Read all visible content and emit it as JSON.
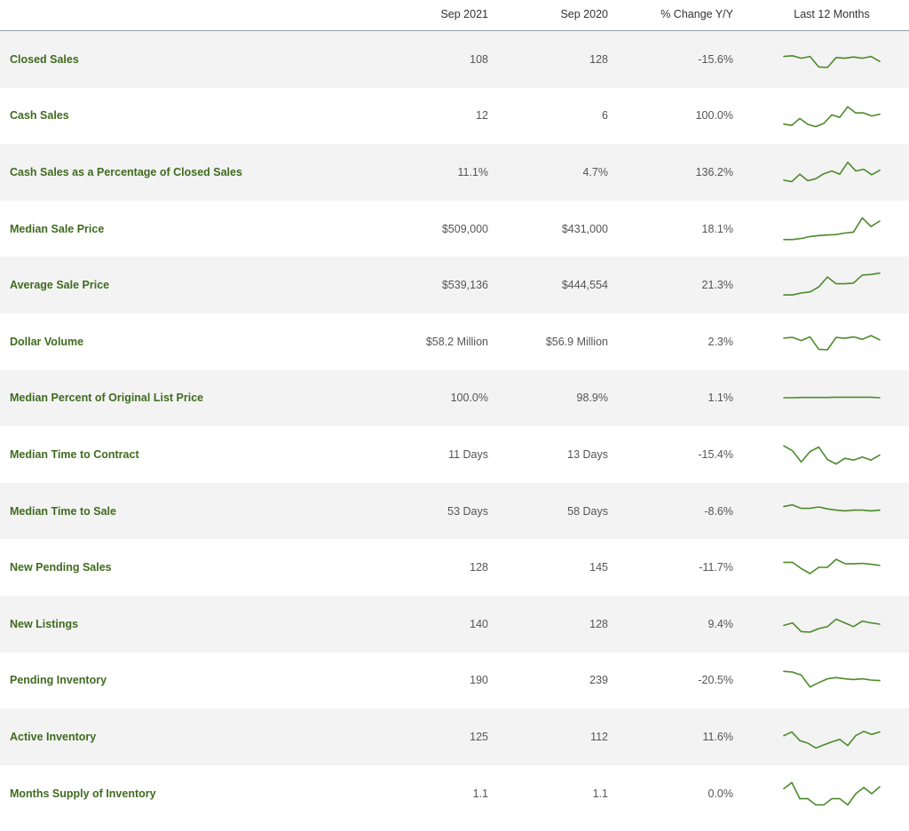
{
  "header": {
    "col1": "Sep 2021",
    "col2": "Sep 2020",
    "col3": "% Change Y/Y",
    "col4": "Last 12 Months"
  },
  "rows": [
    {
      "label": "Closed Sales",
      "sep2021": "108",
      "sep2020": "128",
      "change": "-15.6%",
      "trend": [
        0.62,
        0.65,
        0.55,
        0.62,
        0.2,
        0.18,
        0.58,
        0.55,
        0.6,
        0.55,
        0.62,
        0.42
      ]
    },
    {
      "label": "Cash Sales",
      "sep2021": "12",
      "sep2020": "6",
      "change": "100.0%",
      "trend": [
        0.15,
        0.1,
        0.38,
        0.14,
        0.05,
        0.18,
        0.52,
        0.42,
        0.85,
        0.6,
        0.6,
        0.48,
        0.55
      ]
    },
    {
      "label": "Cash Sales as a Percentage of Closed Sales",
      "sep2021": "11.1%",
      "sep2020": "4.7%",
      "change": "136.2%",
      "trend": [
        0.18,
        0.12,
        0.42,
        0.16,
        0.24,
        0.44,
        0.55,
        0.42,
        0.9,
        0.55,
        0.62,
        0.4,
        0.58
      ]
    },
    {
      "label": "Median Sale Price",
      "sep2021": "$509,000",
      "sep2020": "$431,000",
      "change": "18.1%",
      "trend": [
        0.08,
        0.08,
        0.12,
        0.2,
        0.24,
        0.26,
        0.28,
        0.34,
        0.38,
        0.95,
        0.6,
        0.82
      ]
    },
    {
      "label": "Average Sale Price",
      "sep2021": "$539,136",
      "sep2020": "$444,554",
      "change": "21.3%",
      "trend": [
        0.1,
        0.1,
        0.18,
        0.22,
        0.42,
        0.82,
        0.55,
        0.55,
        0.58,
        0.9,
        0.92,
        0.98
      ]
    },
    {
      "label": "Dollar Volume",
      "sep2021": "$58.2 Million",
      "sep2020": "$56.9 Million",
      "change": "2.3%",
      "trend": [
        0.65,
        0.68,
        0.55,
        0.7,
        0.2,
        0.18,
        0.68,
        0.64,
        0.7,
        0.6,
        0.75,
        0.58
      ]
    },
    {
      "label": "Median Percent of Original List Price",
      "sep2021": "100.0%",
      "sep2020": "98.9%",
      "change": "1.1%",
      "trend": [
        0.5,
        0.5,
        0.51,
        0.51,
        0.51,
        0.51,
        0.52,
        0.52,
        0.52,
        0.52,
        0.52,
        0.5
      ]
    },
    {
      "label": "Median Time to Contract",
      "sep2021": "11 Days",
      "sep2020": "13 Days",
      "change": "-15.4%",
      "trend": [
        0.85,
        0.65,
        0.2,
        0.62,
        0.8,
        0.3,
        0.12,
        0.35,
        0.28,
        0.4,
        0.28,
        0.48
      ]
    },
    {
      "label": "Median Time to Sale",
      "sep2021": "53 Days",
      "sep2020": "58 Days",
      "change": "-8.6%",
      "trend": [
        0.7,
        0.76,
        0.62,
        0.62,
        0.68,
        0.6,
        0.55,
        0.52,
        0.55,
        0.55,
        0.52,
        0.55
      ]
    },
    {
      "label": "New Pending Sales",
      "sep2021": "128",
      "sep2020": "145",
      "change": "-11.7%",
      "trend": [
        0.7,
        0.7,
        0.45,
        0.25,
        0.5,
        0.5,
        0.82,
        0.65,
        0.64,
        0.66,
        0.62,
        0.58
      ]
    },
    {
      "label": "New Listings",
      "sep2021": "140",
      "sep2020": "128",
      "change": "9.4%",
      "trend": [
        0.45,
        0.55,
        0.2,
        0.18,
        0.32,
        0.4,
        0.7,
        0.55,
        0.4,
        0.62,
        0.55,
        0.5
      ]
    },
    {
      "label": "Pending Inventory",
      "sep2021": "190",
      "sep2020": "239",
      "change": "-20.5%",
      "trend": [
        0.85,
        0.82,
        0.7,
        0.22,
        0.4,
        0.55,
        0.6,
        0.55,
        0.52,
        0.55,
        0.5,
        0.48
      ]
    },
    {
      "label": "Active Inventory",
      "sep2021": "125",
      "sep2020": "112",
      "change": "11.6%",
      "trend": [
        0.55,
        0.7,
        0.35,
        0.25,
        0.05,
        0.18,
        0.3,
        0.4,
        0.15,
        0.55,
        0.72,
        0.6,
        0.7
      ]
    },
    {
      "label": "Months Supply of Inventory",
      "sep2021": "1.1",
      "sep2020": "1.1",
      "change": "0.0%",
      "trend": [
        0.7,
        0.95,
        0.3,
        0.3,
        0.05,
        0.05,
        0.3,
        0.3,
        0.05,
        0.5,
        0.75,
        0.5,
        0.78
      ]
    }
  ],
  "colors": {
    "label": "#3f6b1f",
    "sparkline": "#4c8a2a",
    "alt_row": "#f3f3f3"
  }
}
